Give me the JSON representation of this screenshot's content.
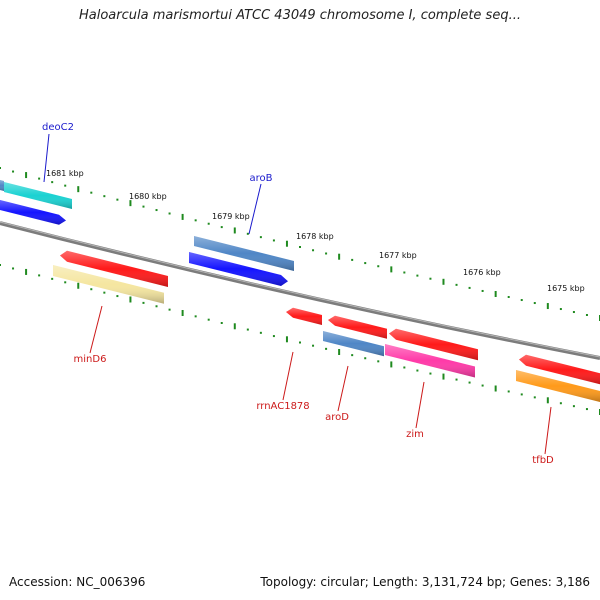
{
  "title": "Haloarcula marismortui ATCC 43049 chromosome I, complete seq...",
  "footer": {
    "accession": "Accession: NC_006396",
    "summary": "Topology: circular; Length: 3,131,724 bp; Genes: 3,186"
  },
  "colors": {
    "backbone": "#808080",
    "tick": "#1f8a1f",
    "label_forward": "#1a1acc",
    "label_reverse": "#cc1a1a",
    "red": "#ff1a1a",
    "blue": "#1414ff",
    "cyan": "#1ad2d2",
    "steelblue": "#4f86c6",
    "khaki": "#f5e6a0",
    "pink": "#ff3aa8",
    "orange": "#ff9a1a"
  },
  "ticks": [
    {
      "label": "1681 kbp"
    },
    {
      "label": "1680 kbp"
    },
    {
      "label": "1679 kbp"
    },
    {
      "label": "1678 kbp"
    },
    {
      "label": "1677 kbp"
    },
    {
      "label": "1676 kbp"
    },
    {
      "label": "1675 kbp"
    }
  ],
  "genes": [
    {
      "name": "deoC2",
      "strand": "forward"
    },
    {
      "name": "aroB",
      "strand": "forward"
    },
    {
      "name": "minD6",
      "strand": "reverse"
    },
    {
      "name": "rrnAC1878",
      "strand": "reverse"
    },
    {
      "name": "aroD",
      "strand": "reverse"
    },
    {
      "name": "zim",
      "strand": "reverse"
    },
    {
      "name": "tfbD",
      "strand": "reverse"
    }
  ]
}
